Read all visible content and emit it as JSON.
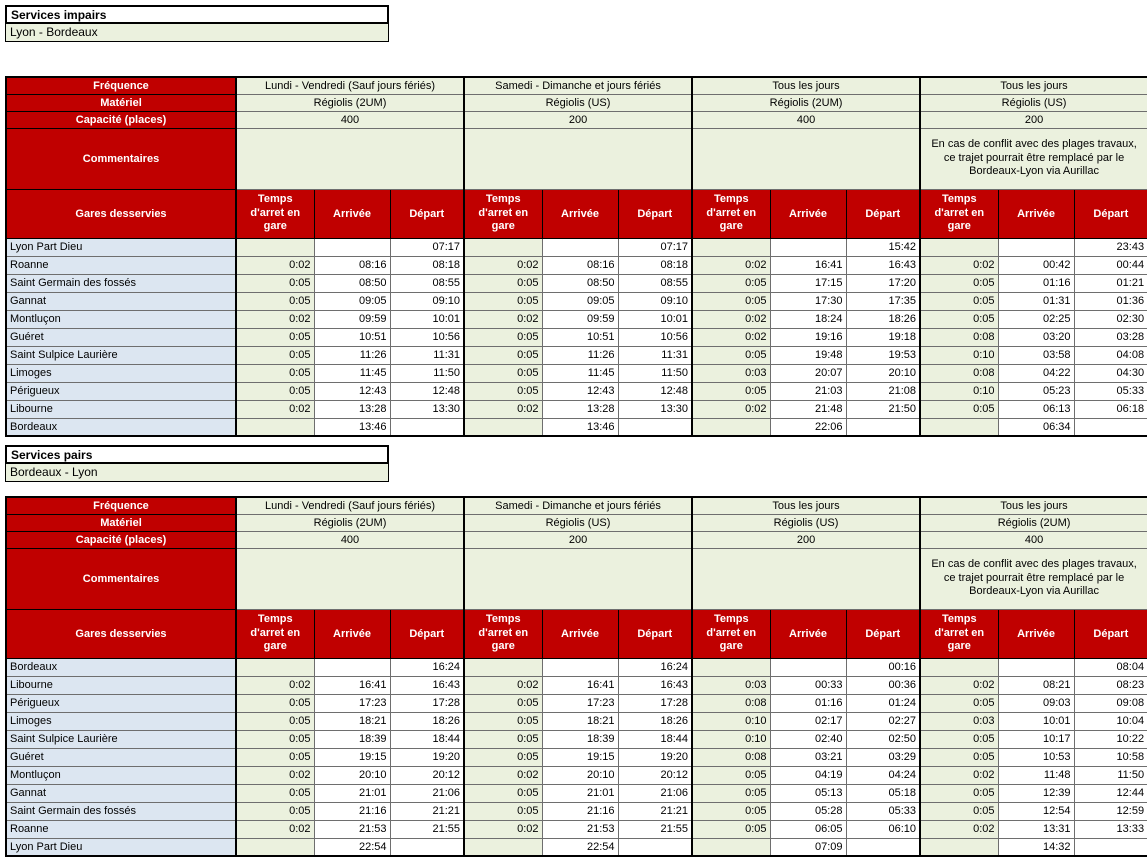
{
  "labels": {
    "frequence": "Fréquence",
    "materiel": "Matériel",
    "capacite": "Capacité (places)",
    "commentaires": "Commentaires",
    "gares": "Gares desservies",
    "temps": "Temps d'arret en gare",
    "arrivee": "Arrivée",
    "depart": "Départ"
  },
  "colors": {
    "header_red": "#C00000",
    "light_green": "#EBF1DE",
    "light_blue": "#DCE6F1",
    "border_black": "#000000",
    "row_line": "#6E6E6E"
  },
  "sections": [
    {
      "title": "Services impairs",
      "subtitle": "Lyon - Bordeaux",
      "columns": [
        {
          "frequence": "Lundi - Vendredi (Sauf jours fériés)",
          "materiel": "Régiolis (2UM)",
          "capacite": "400",
          "commentaire": ""
        },
        {
          "frequence": "Samedi  - Dimanche et jours fériés",
          "materiel": "Régiolis (US)",
          "capacite": "200",
          "commentaire": ""
        },
        {
          "frequence": "Tous les jours",
          "materiel": "Régiolis (2UM)",
          "capacite": "400",
          "commentaire": ""
        },
        {
          "frequence": "Tous les jours",
          "materiel": "Régiolis (US)",
          "capacite": "200",
          "commentaire": "En cas de conflit avec des plages travaux, ce trajet pourrait être remplacé par le Bordeaux-Lyon via Aurillac"
        }
      ],
      "rows": [
        {
          "gare": "Lyon Part Dieu",
          "groups": [
            [
              "",
              "",
              "07:17"
            ],
            [
              "",
              "",
              "07:17"
            ],
            [
              "",
              "",
              "15:42"
            ],
            [
              "",
              "",
              "23:43"
            ]
          ]
        },
        {
          "gare": "Roanne",
          "groups": [
            [
              "0:02",
              "08:16",
              "08:18"
            ],
            [
              "0:02",
              "08:16",
              "08:18"
            ],
            [
              "0:02",
              "16:41",
              "16:43"
            ],
            [
              "0:02",
              "00:42",
              "00:44"
            ]
          ]
        },
        {
          "gare": "Saint Germain des fossés",
          "groups": [
            [
              "0:05",
              "08:50",
              "08:55"
            ],
            [
              "0:05",
              "08:50",
              "08:55"
            ],
            [
              "0:05",
              "17:15",
              "17:20"
            ],
            [
              "0:05",
              "01:16",
              "01:21"
            ]
          ]
        },
        {
          "gare": "Gannat",
          "groups": [
            [
              "0:05",
              "09:05",
              "09:10"
            ],
            [
              "0:05",
              "09:05",
              "09:10"
            ],
            [
              "0:05",
              "17:30",
              "17:35"
            ],
            [
              "0:05",
              "01:31",
              "01:36"
            ]
          ]
        },
        {
          "gare": "Montluçon",
          "groups": [
            [
              "0:02",
              "09:59",
              "10:01"
            ],
            [
              "0:02",
              "09:59",
              "10:01"
            ],
            [
              "0:02",
              "18:24",
              "18:26"
            ],
            [
              "0:05",
              "02:25",
              "02:30"
            ]
          ]
        },
        {
          "gare": "Guéret",
          "groups": [
            [
              "0:05",
              "10:51",
              "10:56"
            ],
            [
              "0:05",
              "10:51",
              "10:56"
            ],
            [
              "0:02",
              "19:16",
              "19:18"
            ],
            [
              "0:08",
              "03:20",
              "03:28"
            ]
          ]
        },
        {
          "gare": "Saint Sulpice Laurière",
          "groups": [
            [
              "0:05",
              "11:26",
              "11:31"
            ],
            [
              "0:05",
              "11:26",
              "11:31"
            ],
            [
              "0:05",
              "19:48",
              "19:53"
            ],
            [
              "0:10",
              "03:58",
              "04:08"
            ]
          ]
        },
        {
          "gare": "Limoges",
          "groups": [
            [
              "0:05",
              "11:45",
              "11:50"
            ],
            [
              "0:05",
              "11:45",
              "11:50"
            ],
            [
              "0:03",
              "20:07",
              "20:10"
            ],
            [
              "0:08",
              "04:22",
              "04:30"
            ]
          ]
        },
        {
          "gare": "Périgueux",
          "groups": [
            [
              "0:05",
              "12:43",
              "12:48"
            ],
            [
              "0:05",
              "12:43",
              "12:48"
            ],
            [
              "0:05",
              "21:03",
              "21:08"
            ],
            [
              "0:10",
              "05:23",
              "05:33"
            ]
          ]
        },
        {
          "gare": "Libourne",
          "groups": [
            [
              "0:02",
              "13:28",
              "13:30"
            ],
            [
              "0:02",
              "13:28",
              "13:30"
            ],
            [
              "0:02",
              "21:48",
              "21:50"
            ],
            [
              "0:05",
              "06:13",
              "06:18"
            ]
          ]
        },
        {
          "gare": "Bordeaux",
          "groups": [
            [
              "",
              "13:46",
              ""
            ],
            [
              "",
              "13:46",
              ""
            ],
            [
              "",
              "22:06",
              ""
            ],
            [
              "",
              "06:34",
              ""
            ]
          ]
        }
      ]
    },
    {
      "title": "Services pairs",
      "subtitle": "Bordeaux - Lyon",
      "columns": [
        {
          "frequence": "Lundi - Vendredi (Sauf jours fériés)",
          "materiel": "Régiolis (2UM)",
          "capacite": "400",
          "commentaire": ""
        },
        {
          "frequence": "Samedi  - Dimanche et jours fériés",
          "materiel": "Régiolis (US)",
          "capacite": "200",
          "commentaire": ""
        },
        {
          "frequence": "Tous les jours",
          "materiel": "Régiolis (US)",
          "capacite": "200",
          "commentaire": ""
        },
        {
          "frequence": "Tous les jours",
          "materiel": "Régiolis (2UM)",
          "capacite": "400",
          "commentaire": "En cas de conflit avec des plages travaux, ce trajet pourrait être remplacé par le Bordeaux-Lyon via Aurillac"
        }
      ],
      "rows": [
        {
          "gare": "Bordeaux",
          "groups": [
            [
              "",
              "",
              "16:24"
            ],
            [
              "",
              "",
              "16:24"
            ],
            [
              "",
              "",
              "00:16"
            ],
            [
              "",
              "",
              "08:04"
            ]
          ]
        },
        {
          "gare": "Libourne",
          "groups": [
            [
              "0:02",
              "16:41",
              "16:43"
            ],
            [
              "0:02",
              "16:41",
              "16:43"
            ],
            [
              "0:03",
              "00:33",
              "00:36"
            ],
            [
              "0:02",
              "08:21",
              "08:23"
            ]
          ]
        },
        {
          "gare": "Périgueux",
          "groups": [
            [
              "0:05",
              "17:23",
              "17:28"
            ],
            [
              "0:05",
              "17:23",
              "17:28"
            ],
            [
              "0:08",
              "01:16",
              "01:24"
            ],
            [
              "0:05",
              "09:03",
              "09:08"
            ]
          ]
        },
        {
          "gare": "Limoges",
          "groups": [
            [
              "0:05",
              "18:21",
              "18:26"
            ],
            [
              "0:05",
              "18:21",
              "18:26"
            ],
            [
              "0:10",
              "02:17",
              "02:27"
            ],
            [
              "0:03",
              "10:01",
              "10:04"
            ]
          ]
        },
        {
          "gare": "Saint Sulpice Laurière",
          "groups": [
            [
              "0:05",
              "18:39",
              "18:44"
            ],
            [
              "0:05",
              "18:39",
              "18:44"
            ],
            [
              "0:10",
              "02:40",
              "02:50"
            ],
            [
              "0:05",
              "10:17",
              "10:22"
            ]
          ]
        },
        {
          "gare": "Guéret",
          "groups": [
            [
              "0:05",
              "19:15",
              "19:20"
            ],
            [
              "0:05",
              "19:15",
              "19:20"
            ],
            [
              "0:08",
              "03:21",
              "03:29"
            ],
            [
              "0:05",
              "10:53",
              "10:58"
            ]
          ]
        },
        {
          "gare": "Montluçon",
          "groups": [
            [
              "0:02",
              "20:10",
              "20:12"
            ],
            [
              "0:02",
              "20:10",
              "20:12"
            ],
            [
              "0:05",
              "04:19",
              "04:24"
            ],
            [
              "0:02",
              "11:48",
              "11:50"
            ]
          ]
        },
        {
          "gare": "Gannat",
          "groups": [
            [
              "0:05",
              "21:01",
              "21:06"
            ],
            [
              "0:05",
              "21:01",
              "21:06"
            ],
            [
              "0:05",
              "05:13",
              "05:18"
            ],
            [
              "0:05",
              "12:39",
              "12:44"
            ]
          ]
        },
        {
          "gare": "Saint Germain des fossés",
          "groups": [
            [
              "0:05",
              "21:16",
              "21:21"
            ],
            [
              "0:05",
              "21:16",
              "21:21"
            ],
            [
              "0:05",
              "05:28",
              "05:33"
            ],
            [
              "0:05",
              "12:54",
              "12:59"
            ]
          ]
        },
        {
          "gare": "Roanne",
          "groups": [
            [
              "0:02",
              "21:53",
              "21:55"
            ],
            [
              "0:02",
              "21:53",
              "21:55"
            ],
            [
              "0:05",
              "06:05",
              "06:10"
            ],
            [
              "0:02",
              "13:31",
              "13:33"
            ]
          ]
        },
        {
          "gare": "Lyon Part Dieu",
          "groups": [
            [
              "",
              "22:54",
              ""
            ],
            [
              "",
              "22:54",
              ""
            ],
            [
              "",
              "07:09",
              ""
            ],
            [
              "",
              "14:32",
              ""
            ]
          ]
        }
      ]
    }
  ]
}
